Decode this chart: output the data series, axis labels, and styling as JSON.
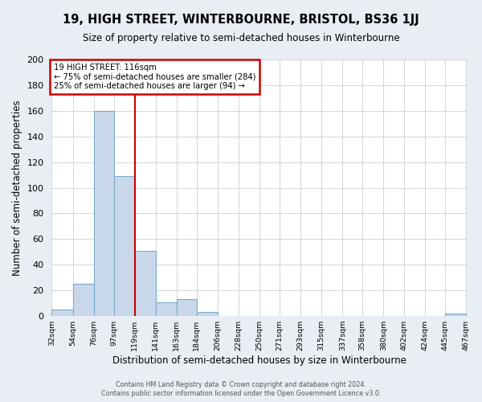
{
  "title": "19, HIGH STREET, WINTERBOURNE, BRISTOL, BS36 1JJ",
  "subtitle": "Size of property relative to semi-detached houses in Winterbourne",
  "xlabel": "Distribution of semi-detached houses by size in Winterbourne",
  "ylabel": "Number of semi-detached properties",
  "bin_edges": [
    32,
    54,
    76,
    97,
    119,
    141,
    163,
    184,
    206,
    228,
    250,
    271,
    293,
    315,
    337,
    358,
    380,
    402,
    424,
    445,
    467
  ],
  "bin_counts": [
    5,
    25,
    160,
    109,
    51,
    11,
    13,
    3,
    0,
    0,
    0,
    0,
    0,
    0,
    0,
    0,
    0,
    0,
    0,
    2
  ],
  "bar_color": "#c8d8ea",
  "bar_edge_color": "#7aaac8",
  "vline_color": "#cc0000",
  "vline_x": 119,
  "annotation_title": "19 HIGH STREET: 116sqm",
  "annotation_line1": "← 75% of semi-detached houses are smaller (284)",
  "annotation_line2": "25% of semi-detached houses are larger (94) →",
  "annotation_box_color": "#cc0000",
  "ylim": [
    0,
    200
  ],
  "yticks": [
    0,
    20,
    40,
    60,
    80,
    100,
    120,
    140,
    160,
    180,
    200
  ],
  "tick_labels": [
    "32sqm",
    "54sqm",
    "76sqm",
    "97sqm",
    "119sqm",
    "141sqm",
    "163sqm",
    "184sqm",
    "206sqm",
    "228sqm",
    "250sqm",
    "271sqm",
    "293sqm",
    "315sqm",
    "337sqm",
    "358sqm",
    "380sqm",
    "402sqm",
    "424sqm",
    "445sqm",
    "467sqm"
  ],
  "footer_line1": "Contains HM Land Registry data © Crown copyright and database right 2024.",
  "footer_line2": "Contains public sector information licensed under the Open Government Licence v3.0.",
  "fig_bg_color": "#e8eef4",
  "plot_bg_color": "#ffffff",
  "grid_color": "#c8d0d8",
  "title_fontsize": 10.5,
  "subtitle_fontsize": 8.5
}
